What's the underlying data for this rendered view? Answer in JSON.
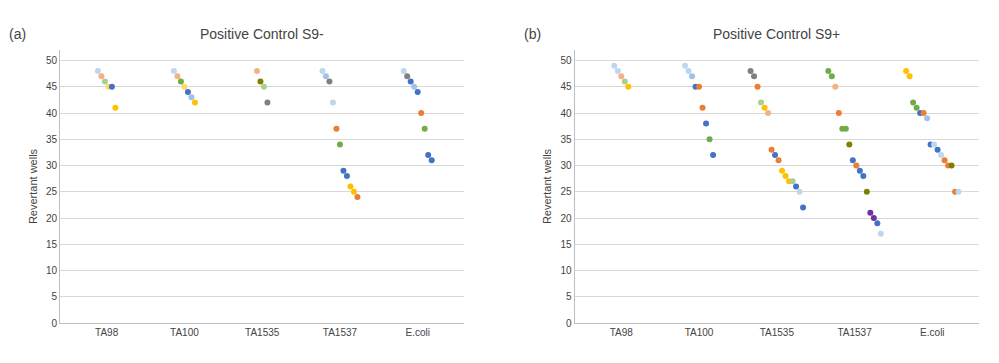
{
  "chart_data": [
    {
      "type": "scatter",
      "title": "Positive Control S9-",
      "ylabel": "Revertant wells",
      "annotations": [
        "(a)"
      ],
      "categories": [
        "TA98",
        "TA100",
        "TA1535",
        "TA1537",
        "E.coli"
      ],
      "values": [
        [
          48,
          47,
          46,
          45,
          45,
          41
        ],
        [
          48,
          47,
          46,
          45,
          44,
          43,
          42
        ],
        [
          48,
          46,
          45,
          42
        ],
        [
          48,
          47,
          46,
          42,
          37,
          34,
          29,
          28,
          26,
          25,
          24
        ],
        [
          48,
          47,
          46,
          45,
          44,
          40,
          37,
          32,
          31
        ]
      ],
      "colors": [
        [
          "#BDD7EE",
          "#F4B183",
          "#A9D18E",
          "#FFD966",
          "#4472C4",
          "#FFC000"
        ],
        [
          "#BDD7EE",
          "#F4B183",
          "#70AD47",
          "#FFD966",
          "#4472C4",
          "#9DC3E6",
          "#FFC000"
        ],
        [
          "#F4B183",
          "#808000",
          "#A9D18E",
          "#808080"
        ],
        [
          "#BDD7EE",
          "#9DC3E6",
          "#808080",
          "#BDD7EE",
          "#ED7D31",
          "#70AD47",
          "#4472C4",
          "#4472C4",
          "#FFC000",
          "#FFC000",
          "#ED7D31"
        ],
        [
          "#BDD7EE",
          "#808080",
          "#4472C4",
          "#9DC3E6",
          "#4472C4",
          "#ED7D31",
          "#70AD47",
          "#4472C4",
          "#4472C4"
        ]
      ],
      "ylim": [
        0,
        52
      ],
      "yticks": [
        0,
        5,
        10,
        15,
        20,
        25,
        30,
        35,
        40,
        45,
        50
      ],
      "grid": true
    },
    {
      "type": "scatter",
      "title": "Positive Control S9+",
      "ylabel": "Revertant wells",
      "annotations": [
        "(b)"
      ],
      "categories": [
        "TA98",
        "TA100",
        "TA1535",
        "TA1537",
        "E.coli"
      ],
      "values": [
        [
          49,
          48,
          47,
          46,
          45
        ],
        [
          49,
          48,
          47,
          45,
          45,
          41,
          38,
          35,
          32
        ],
        [
          48,
          47,
          45,
          42,
          41,
          40,
          33,
          32,
          31,
          29,
          28,
          27,
          27,
          26,
          25,
          22
        ],
        [
          48,
          47,
          45,
          40,
          37,
          37,
          34,
          31,
          30,
          29,
          28,
          25,
          21,
          20,
          19,
          17
        ],
        [
          48,
          47,
          42,
          41,
          40,
          40,
          39,
          34,
          34,
          33,
          32,
          31,
          30,
          30,
          25,
          25
        ]
      ],
      "colors": [
        [
          "#BDD7EE",
          "#BDD7EE",
          "#F4B183",
          "#A9D18E",
          "#FFC000"
        ],
        [
          "#BDD7EE",
          "#BDD7EE",
          "#9DC3E6",
          "#4472C4",
          "#ED7D31",
          "#ED7D31",
          "#4472C4",
          "#70AD47",
          "#4472C4"
        ],
        [
          "#808080",
          "#808080",
          "#ED7D31",
          "#A9D18E",
          "#FFC000",
          "#F4B183",
          "#ED7D31",
          "#4472C4",
          "#ED7D31",
          "#FFC000",
          "#FFC000",
          "#FFC000",
          "#A9D18E",
          "#4472C4",
          "#BDD7EE",
          "#4472C4"
        ],
        [
          "#70AD47",
          "#70AD47",
          "#F4B183",
          "#ED7D31",
          "#70AD47",
          "#70AD47",
          "#808000",
          "#4472C4",
          "#ED7D31",
          "#4472C4",
          "#4472C4",
          "#808000",
          "#7030A0",
          "#7030A0",
          "#4472C4",
          "#BDD7EE"
        ],
        [
          "#FFC000",
          "#FFC000",
          "#70AD47",
          "#70AD47",
          "#4472C4",
          "#ED7D31",
          "#9DC3E6",
          "#4472C4",
          "#BDD7EE",
          "#4472C4",
          "#BDD7EE",
          "#ED7D31",
          "#ED7D31",
          "#808000",
          "#ED7D31",
          "#BDD7EE"
        ]
      ],
      "ylim": [
        0,
        52
      ],
      "yticks": [
        0,
        5,
        10,
        15,
        20,
        25,
        30,
        35,
        40,
        45,
        50
      ],
      "grid": true
    }
  ]
}
